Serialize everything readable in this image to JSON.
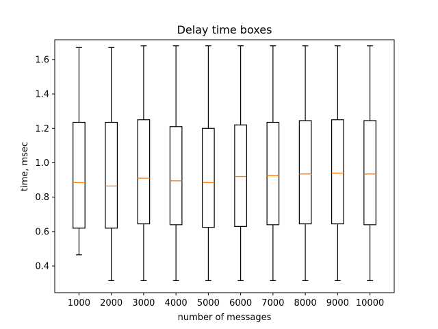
{
  "chart_data": {
    "type": "box",
    "title": "Delay time boxes",
    "xlabel": "number of messages",
    "ylabel": "time, msec",
    "categories": [
      "1000",
      "2000",
      "3000",
      "4000",
      "5000",
      "6000",
      "7000",
      "8000",
      "9000",
      "10000"
    ],
    "ylim": [
      0.245,
      1.715
    ],
    "yticks": [
      0.4,
      0.6,
      0.8,
      1.0,
      1.2,
      1.4,
      1.6
    ],
    "ytick_labels": [
      "0.4",
      "0.6",
      "0.8",
      "1.0",
      "1.2",
      "1.4",
      "1.6"
    ],
    "grid": false,
    "boxes": [
      {
        "whisker_low": 0.465,
        "q1": 0.62,
        "median": 0.885,
        "q3": 1.235,
        "whisker_high": 1.67
      },
      {
        "whisker_low": 0.315,
        "q1": 0.62,
        "median": 0.865,
        "q3": 1.235,
        "whisker_high": 1.67
      },
      {
        "whisker_low": 0.315,
        "q1": 0.645,
        "median": 0.91,
        "q3": 1.25,
        "whisker_high": 1.68
      },
      {
        "whisker_low": 0.315,
        "q1": 0.64,
        "median": 0.895,
        "q3": 1.21,
        "whisker_high": 1.68
      },
      {
        "whisker_low": 0.315,
        "q1": 0.625,
        "median": 0.885,
        "q3": 1.2,
        "whisker_high": 1.68
      },
      {
        "whisker_low": 0.315,
        "q1": 0.63,
        "median": 0.92,
        "q3": 1.22,
        "whisker_high": 1.68
      },
      {
        "whisker_low": 0.315,
        "q1": 0.64,
        "median": 0.925,
        "q3": 1.235,
        "whisker_high": 1.68
      },
      {
        "whisker_low": 0.315,
        "q1": 0.645,
        "median": 0.935,
        "q3": 1.245,
        "whisker_high": 1.68
      },
      {
        "whisker_low": 0.315,
        "q1": 0.645,
        "median": 0.94,
        "q3": 1.25,
        "whisker_high": 1.68
      },
      {
        "whisker_low": 0.315,
        "q1": 0.64,
        "median": 0.935,
        "q3": 1.245,
        "whisker_high": 1.68
      }
    ],
    "colors": {
      "box": "#000000",
      "median": "#ff7f0e",
      "axes": "#000000",
      "background": "#ffffff"
    }
  }
}
